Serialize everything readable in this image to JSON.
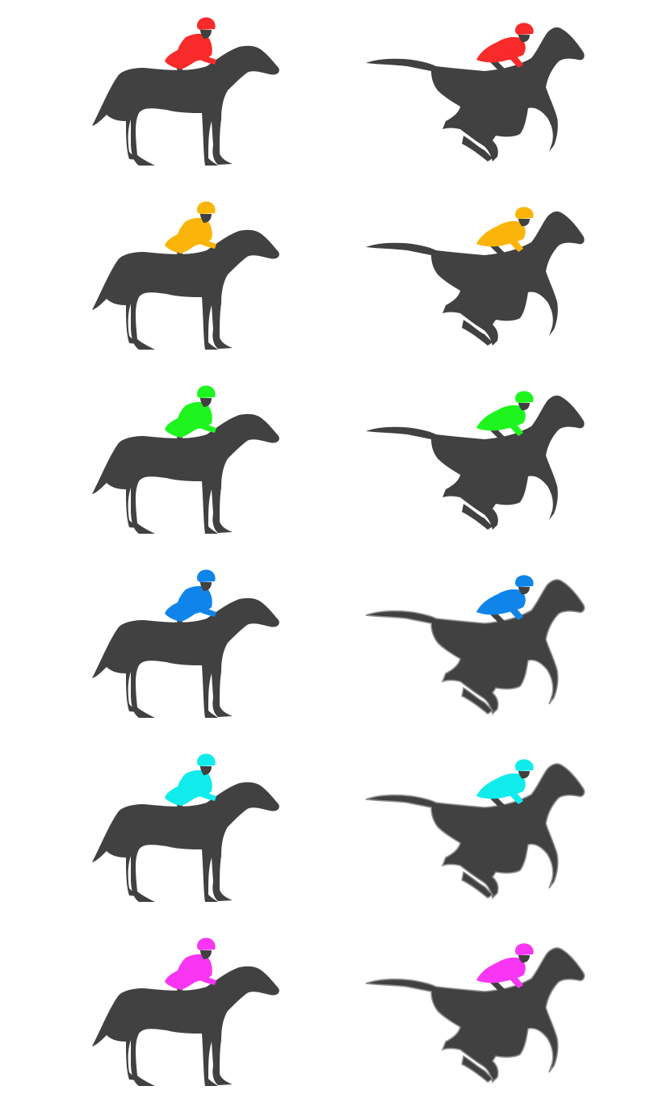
{
  "horse_color": "#414141",
  "outline_color": "#8e8e8e",
  "rows": [
    {
      "jockey_color": "#f82a2a",
      "outlined": false
    },
    {
      "jockey_color": "#fbb50a",
      "outlined": false
    },
    {
      "jockey_color": "#1ef51e",
      "outlined": false
    },
    {
      "jockey_color": "#0f85ea",
      "outlined": true
    },
    {
      "jockey_color": "#10ecec",
      "outlined": true
    },
    {
      "jockey_color": "#f735f2",
      "outlined": true
    }
  ],
  "poses": [
    "standing",
    "galloping"
  ]
}
